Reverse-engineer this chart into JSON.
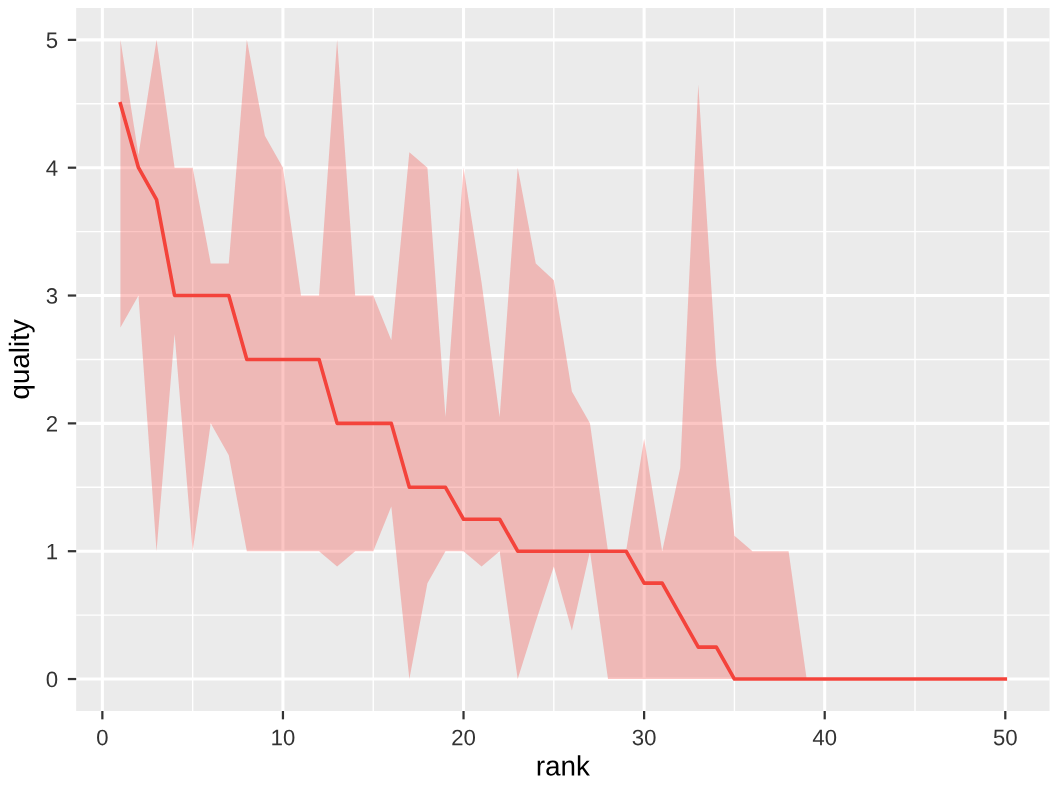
{
  "chart_data": {
    "type": "line",
    "xlabel": "rank",
    "ylabel": "quality",
    "x": [
      1,
      2,
      3,
      4,
      5,
      6,
      7,
      8,
      9,
      10,
      11,
      12,
      13,
      14,
      15,
      16,
      17,
      18,
      19,
      20,
      21,
      22,
      23,
      24,
      25,
      26,
      27,
      28,
      29,
      30,
      31,
      32,
      33,
      34,
      35,
      36,
      37,
      38,
      39,
      40,
      41,
      42,
      43,
      44,
      45,
      46,
      47,
      48,
      49,
      50
    ],
    "series": [
      {
        "color": "#f4433b",
        "values": [
          4.5,
          4,
          3.75,
          3,
          3,
          3,
          3,
          2.5,
          2.5,
          2.5,
          2.5,
          2.5,
          2,
          2,
          2,
          2,
          1.5,
          1.5,
          1.5,
          1.25,
          1.25,
          1.25,
          1,
          1,
          1,
          1,
          1,
          1,
          1,
          0.75,
          0.75,
          0.5,
          0.25,
          0.25,
          0,
          0,
          0,
          0,
          0,
          0,
          0,
          0,
          0,
          0,
          0,
          0,
          0,
          0,
          0,
          0
        ],
        "upper": [
          5,
          4.1,
          5,
          4,
          4,
          3.25,
          3.25,
          5,
          4.25,
          4,
          3,
          3,
          5,
          3,
          3,
          2.65,
          4.12,
          4,
          2.05,
          4,
          3.1,
          2.05,
          4,
          3.25,
          3.12,
          2.25,
          2,
          1,
          1,
          1.88,
          1,
          1.65,
          4.65,
          2.45,
          1.12,
          1,
          1,
          1,
          0,
          0,
          0,
          0,
          0,
          0,
          0,
          0,
          0,
          0,
          0,
          0
        ],
        "lower": [
          2.75,
          3,
          1,
          2.7,
          1,
          2,
          1.75,
          1,
          1,
          1,
          1,
          1,
          0.88,
          1,
          1,
          1.35,
          0,
          0.75,
          1,
          1,
          0.88,
          1,
          0,
          0.45,
          0.88,
          0.38,
          1,
          0,
          0,
          0,
          0,
          0,
          0,
          0,
          0,
          0,
          0,
          0,
          0,
          0,
          0,
          0,
          0,
          0,
          0,
          0,
          0,
          0,
          0,
          0
        ]
      }
    ],
    "xlim": [
      -1.45,
      52.45
    ],
    "ylim": [
      -0.25,
      5.25
    ],
    "xticks": [
      0,
      10,
      20,
      30,
      40,
      50
    ],
    "yticks": [
      0,
      1,
      2,
      3,
      4,
      5
    ],
    "grid": true,
    "legend": false,
    "marker": "none",
    "line_style": "solid"
  }
}
